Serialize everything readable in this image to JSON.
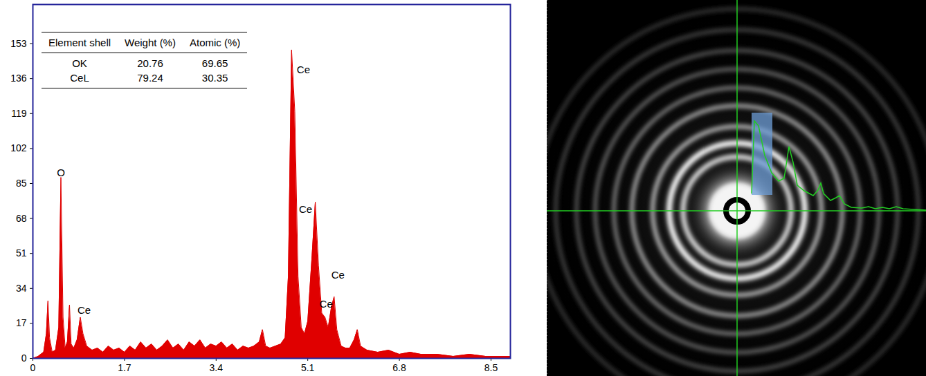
{
  "chart_data": {
    "type": "area",
    "color": "#e00000",
    "x": [
      0.0,
      0.1,
      0.2,
      0.25,
      0.28,
      0.31,
      0.36,
      0.42,
      0.48,
      0.52,
      0.56,
      0.6,
      0.64,
      0.68,
      0.71,
      0.76,
      0.82,
      0.88,
      0.93,
      1.0,
      1.1,
      1.2,
      1.3,
      1.4,
      1.5,
      1.6,
      1.7,
      1.8,
      1.9,
      2.0,
      2.1,
      2.2,
      2.3,
      2.4,
      2.5,
      2.6,
      2.7,
      2.8,
      2.9,
      3.0,
      3.1,
      3.2,
      3.3,
      3.4,
      3.5,
      3.6,
      3.7,
      3.8,
      3.9,
      4.0,
      4.1,
      4.2,
      4.26,
      4.32,
      4.4,
      4.5,
      4.6,
      4.68,
      4.74,
      4.8,
      4.86,
      4.92,
      4.98,
      5.04,
      5.1,
      5.18,
      5.24,
      5.3,
      5.36,
      5.42,
      5.48,
      5.54,
      5.59,
      5.64,
      5.72,
      5.8,
      5.88,
      5.96,
      6.02,
      6.08,
      6.2,
      6.4,
      6.6,
      6.8,
      7.0,
      7.2,
      7.5,
      7.8,
      8.1,
      8.4,
      8.86
    ],
    "values": [
      0,
      1,
      3,
      12,
      28,
      10,
      3,
      4,
      15,
      88,
      20,
      5,
      8,
      26,
      7,
      5,
      9,
      20,
      12,
      6,
      4,
      5,
      3,
      6,
      4,
      5,
      3,
      6,
      4,
      8,
      5,
      7,
      4,
      6,
      9,
      5,
      7,
      4,
      8,
      6,
      9,
      5,
      7,
      6,
      8,
      5,
      7,
      4,
      6,
      5,
      6,
      8,
      14,
      6,
      5,
      6,
      7,
      10,
      40,
      150,
      120,
      40,
      15,
      12,
      18,
      50,
      76,
      45,
      22,
      20,
      15,
      25,
      30,
      14,
      6,
      5,
      5,
      9,
      14,
      6,
      4,
      3,
      4,
      2,
      3,
      2,
      2,
      1,
      2,
      1,
      1
    ],
    "xlim": [
      0,
      8.86
    ],
    "xticks": [
      0,
      1.7,
      3.4,
      5.1,
      6.8,
      8.5
    ],
    "ylim": [
      0,
      172
    ],
    "yticks": [
      0,
      17,
      34,
      51,
      68,
      85,
      102,
      119,
      136,
      153
    ],
    "grid": false,
    "annotations": [
      {
        "text": "O",
        "x": 0.52,
        "y": 88
      },
      {
        "text": "Ce",
        "x": 0.95,
        "y": 21
      },
      {
        "text": "Ce",
        "x": 5.02,
        "y": 138
      },
      {
        "text": "Ce",
        "x": 5.06,
        "y": 70
      },
      {
        "text": "Ce",
        "x": 5.66,
        "y": 38
      },
      {
        "text": "Ce",
        "x": 5.44,
        "y": 24
      }
    ],
    "table": {
      "columns": [
        "Element shell",
        "Weight (%)",
        "Atomic (%)"
      ],
      "rows": [
        [
          "OK",
          20.76,
          69.65
        ],
        [
          "CeL",
          79.24,
          30.35
        ]
      ]
    }
  }
}
